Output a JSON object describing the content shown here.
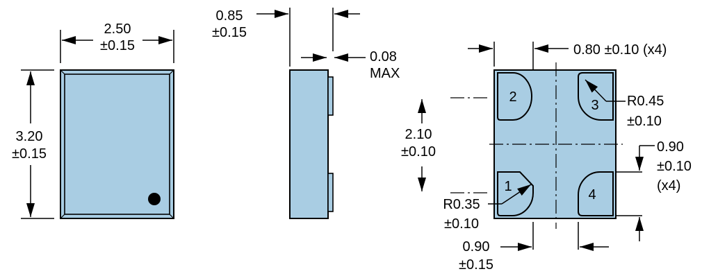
{
  "colors": {
    "body": "#a9cde3",
    "stroke": "#000000",
    "background": "#ffffff"
  },
  "top_view": {
    "width_value": "2.50",
    "width_tol": "±0.15",
    "height_value": "3.20",
    "height_tol": "±0.15"
  },
  "side_view": {
    "thickness_value": "0.85",
    "thickness_tol": "±0.15",
    "pad_value": "0.08",
    "pad_max": "MAX"
  },
  "bottom_view": {
    "pad_width": "0.80 ±0.10 (x4)",
    "pitch_value": "2.10",
    "pitch_tol": "±0.10",
    "radius_large_value": "R0.45",
    "radius_large_tol": "±0.10",
    "pad_height_value": "0.90",
    "pad_height_tol": "±0.10",
    "pad_height_count": "(x4)",
    "radius_small_value": "R0.35",
    "radius_small_tol": "±0.10",
    "bottom_value": "0.90",
    "bottom_tol": "±0.15",
    "pins": [
      "1",
      "2",
      "3",
      "4"
    ]
  }
}
